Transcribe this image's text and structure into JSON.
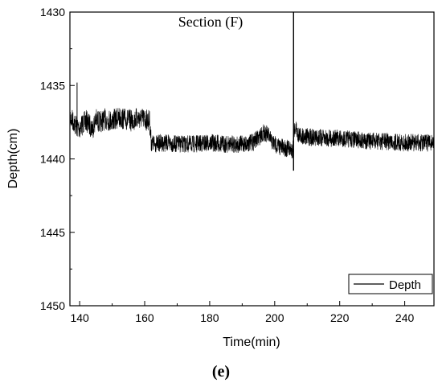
{
  "chart_data": {
    "type": "line",
    "title": "Section (F)",
    "panel_label": "(e)",
    "xlabel": "Time(min)",
    "ylabel": "Depth(cm)",
    "xlim": [
      137,
      249
    ],
    "ylim": [
      1430,
      1450
    ],
    "y_inverted": true,
    "xticks": [
      140,
      160,
      180,
      200,
      220,
      240
    ],
    "yticks": [
      1430,
      1435,
      1440,
      1445,
      1450
    ],
    "grid": false,
    "legend_position": "bottom-right",
    "series": [
      {
        "name": "Depth",
        "color": "#000000",
        "x": [
          137,
          138,
          139,
          140,
          141,
          142,
          143,
          144,
          144.5,
          145,
          146,
          148,
          150,
          152,
          154,
          156,
          158,
          160,
          161.5,
          162,
          163,
          165,
          170,
          175,
          180,
          185,
          190,
          193,
          195,
          196,
          197,
          198,
          199,
          200,
          202,
          204,
          205.5,
          206,
          206.5,
          207,
          208,
          210,
          215,
          220,
          225,
          230,
          235,
          240,
          245,
          249
        ],
        "y": [
          1437.2,
          1437.4,
          1437.8,
          1437.9,
          1437.6,
          1437.4,
          1437.7,
          1437.9,
          1437.6,
          1437.3,
          1437.5,
          1437.3,
          1437.4,
          1437.2,
          1437.3,
          1437.4,
          1437.2,
          1437.3,
          1437.4,
          1438.9,
          1439.0,
          1438.9,
          1439.0,
          1439.0,
          1438.9,
          1439.0,
          1439.0,
          1438.9,
          1438.6,
          1438.3,
          1438.2,
          1438.4,
          1438.8,
          1439.0,
          1439.2,
          1439.3,
          1439.4,
          1438.0,
          1437.8,
          1438.3,
          1438.4,
          1438.5,
          1438.6,
          1438.6,
          1438.7,
          1438.8,
          1438.8,
          1438.9,
          1438.9,
          1438.9
        ]
      }
    ]
  }
}
